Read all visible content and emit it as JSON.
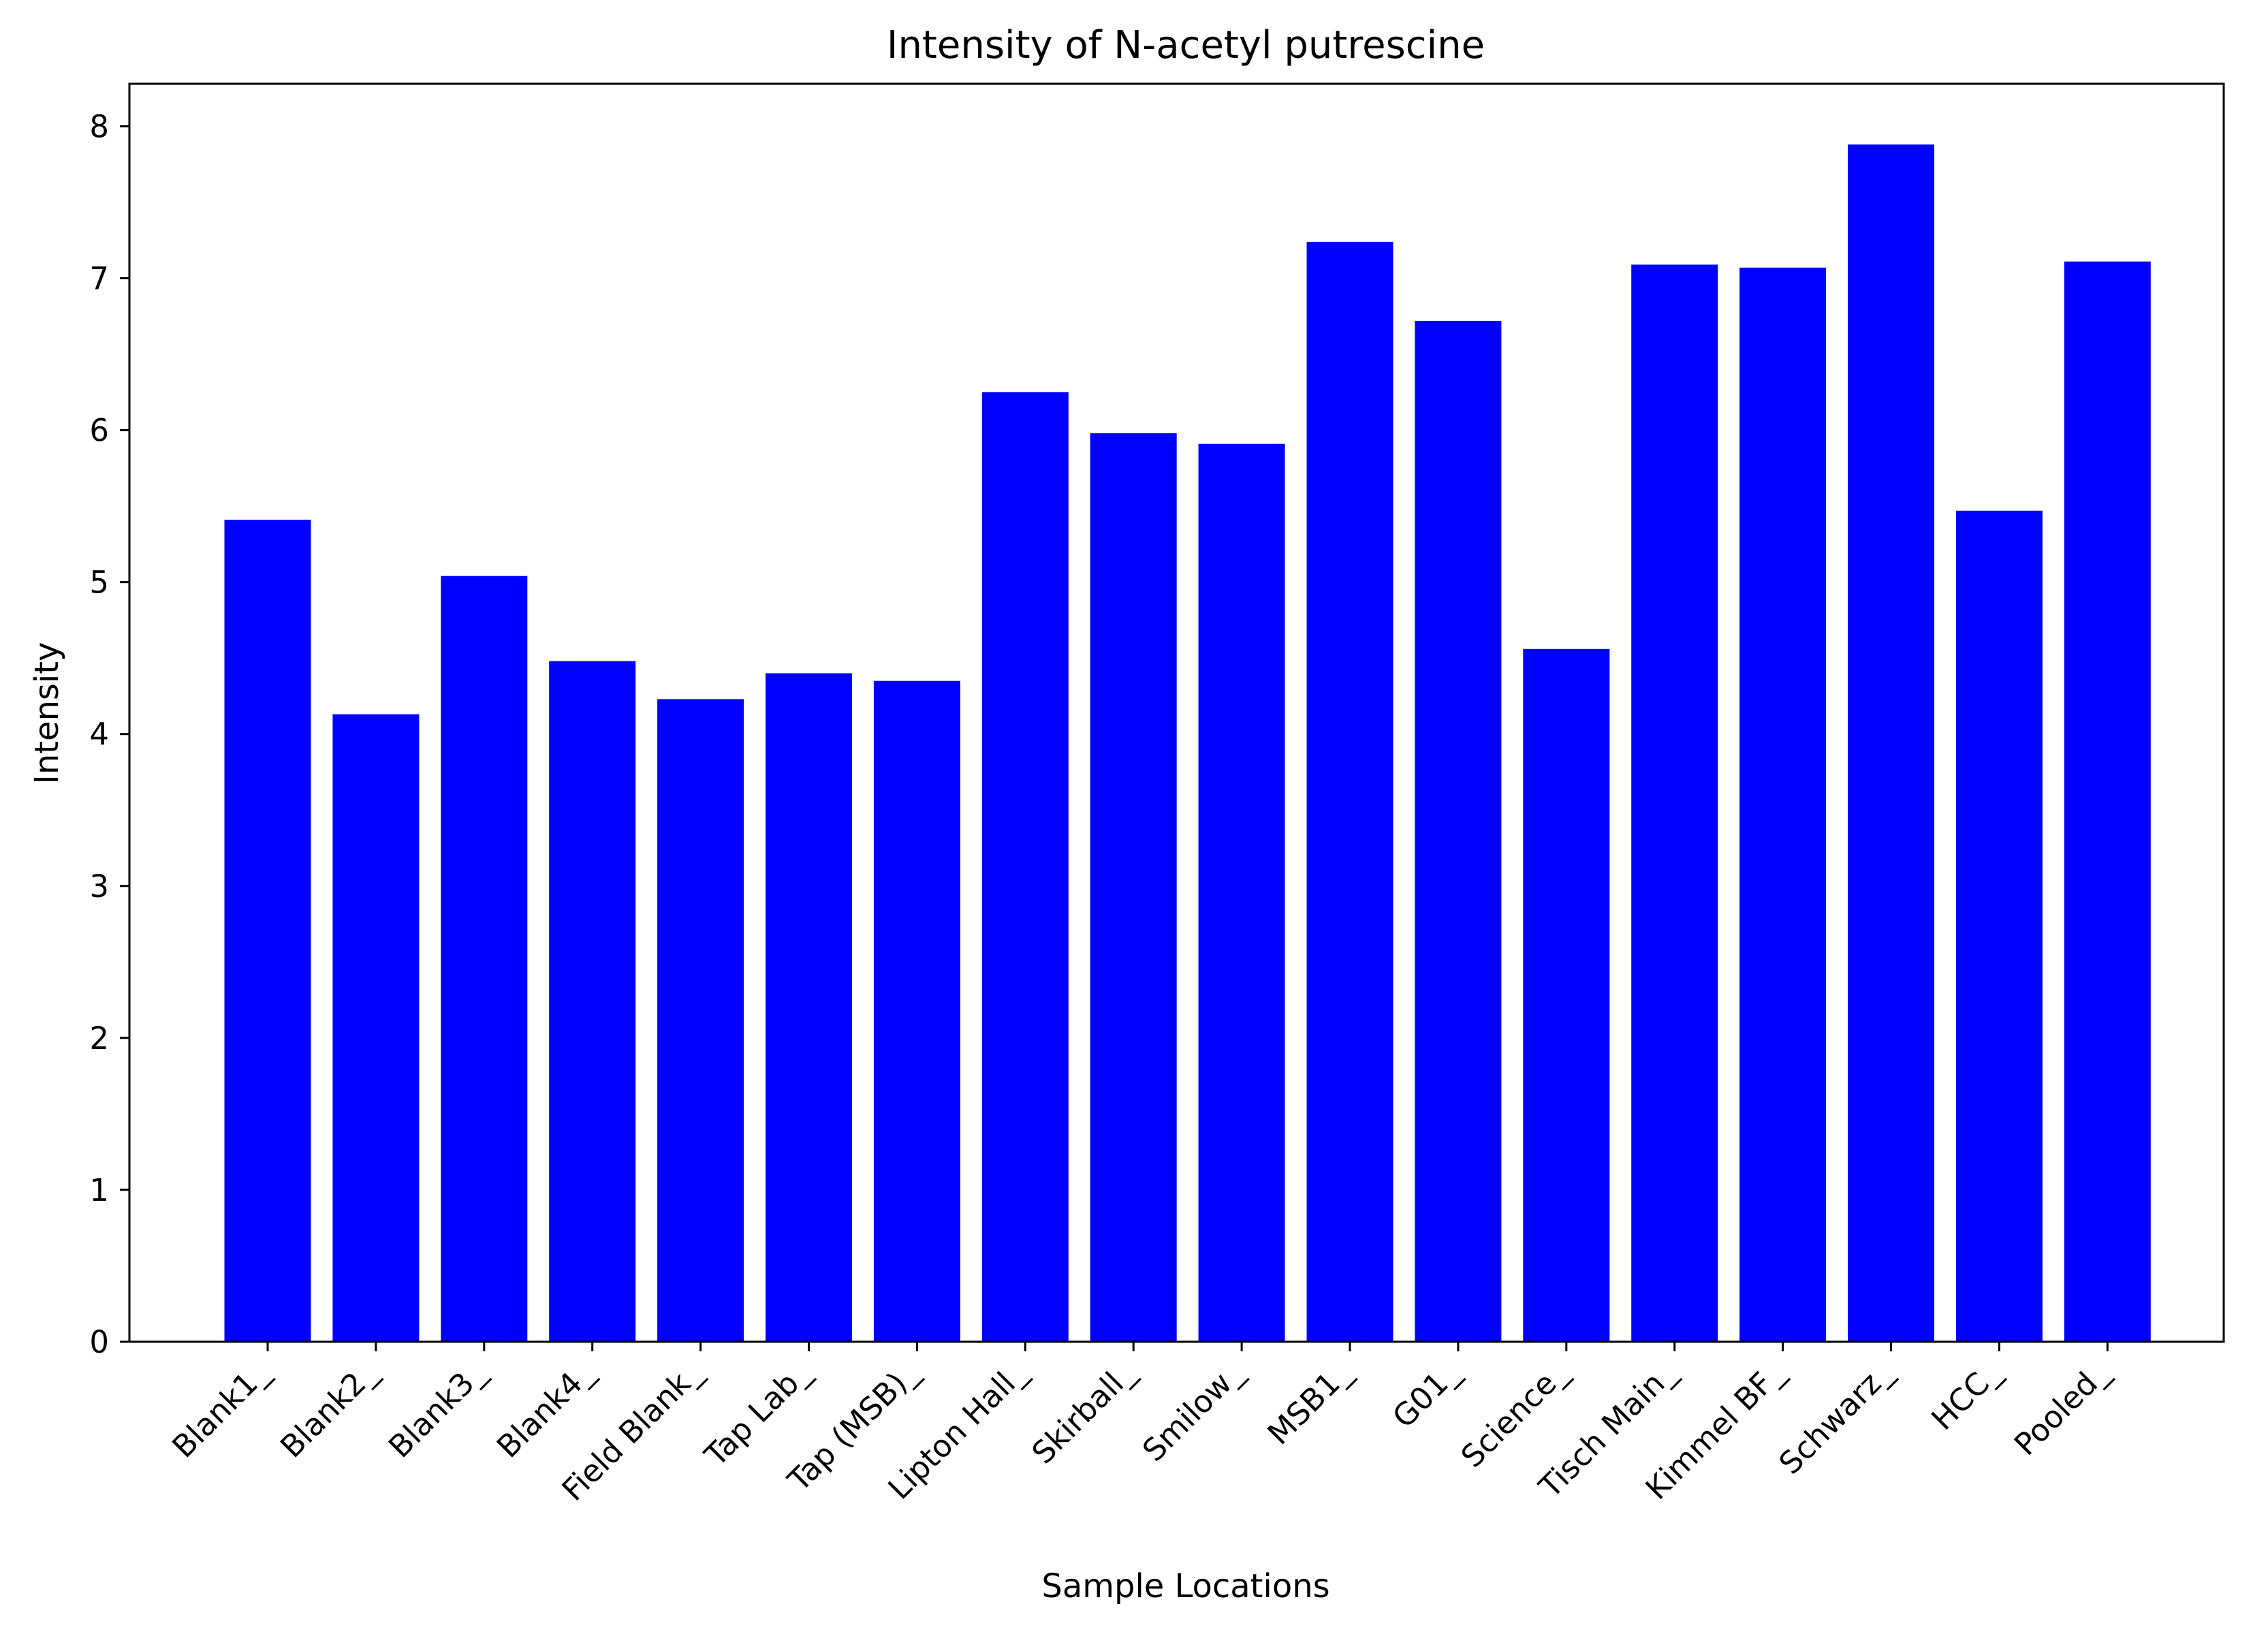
{
  "chart_data": {
    "type": "bar",
    "title": "Intensity of N-acetyl putrescine",
    "xlabel": "Sample Locations",
    "ylabel": "Intensity",
    "categories": [
      "Blank1_",
      "Blank2_",
      "Blank3_",
      "Blank4_",
      "Field Blank_",
      "Tap Lab_",
      "Tap (MSB)_",
      "Lipton Hall_",
      "Skirball_",
      "Smilow_",
      "MSB1_",
      "G01_",
      "Science_",
      "Tisch Main_",
      "Kimmel BF_",
      "Schwarz_",
      "HCC_",
      "Pooled_"
    ],
    "values": [
      5.41,
      4.13,
      5.04,
      4.48,
      4.23,
      4.4,
      4.35,
      6.25,
      5.98,
      5.91,
      7.24,
      6.72,
      4.56,
      7.09,
      7.07,
      7.88,
      5.47,
      7.11
    ],
    "yticks": [
      0,
      1,
      2,
      3,
      4,
      5,
      6,
      7,
      8
    ],
    "ylim": [
      0,
      8.28
    ],
    "bar_color": "#0000ff",
    "grid": false,
    "legend": "none"
  }
}
